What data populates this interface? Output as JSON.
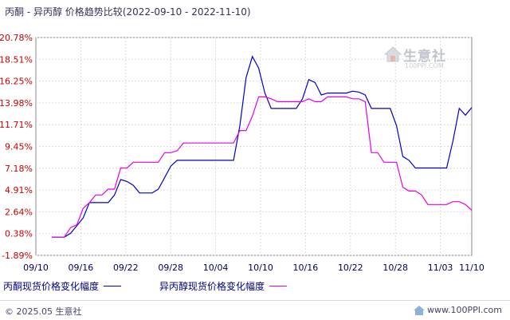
{
  "title": {
    "products": "丙酮 - 异丙醇",
    "subject": "价格趋势比较",
    "date_range": "(2022-09-10 - 2022-11-10)"
  },
  "watermark": {
    "brand": "生意社",
    "url": "100PPI.COM"
  },
  "footer": {
    "copyright": "© 2025.05 生意社",
    "site": "www.100PPI.com"
  },
  "colors": {
    "series_1": "#0000cc",
    "series_2": "#e600e6",
    "grid": "#dcdcdc",
    "y_tick": "#cc0000",
    "x_tick": "#000066"
  },
  "chart_data": {
    "type": "line",
    "title": "",
    "xlabel": "",
    "ylabel": "",
    "x_tick_labels": [
      "09/10",
      "09/16",
      "09/22",
      "09/28",
      "10/04",
      "10/10",
      "10/16",
      "10/22",
      "10/28",
      "11/03",
      "11/10"
    ],
    "y_tick_labels": [
      "20.78%",
      "18.51%",
      "16.25%",
      "13.98%",
      "11.71%",
      "9.45%",
      "7.18%",
      "4.91%",
      "2.64%",
      "0.38%",
      "-1.89%"
    ],
    "ylim": [
      -1.89,
      20.78
    ],
    "x_range_days": [
      0,
      61
    ],
    "grid": true,
    "legend_position": "bottom",
    "series": [
      {
        "name": "丙酮现货价格变化幅度",
        "color": "#0000cc",
        "points": [
          [
            0,
            0.0
          ],
          [
            1,
            0.0
          ],
          [
            2,
            0.0
          ],
          [
            3,
            0.4
          ],
          [
            4,
            1.2
          ],
          [
            5,
            2.0
          ],
          [
            6,
            3.6
          ],
          [
            7,
            3.6
          ],
          [
            8,
            3.6
          ],
          [
            9,
            3.6
          ],
          [
            10,
            4.4
          ],
          [
            11,
            6.0
          ],
          [
            12,
            5.8
          ],
          [
            13,
            5.4
          ],
          [
            14,
            4.6
          ],
          [
            15,
            4.6
          ],
          [
            16,
            4.6
          ],
          [
            17,
            5.0
          ],
          [
            18,
            6.2
          ],
          [
            19,
            7.4
          ],
          [
            20,
            8.0
          ],
          [
            21,
            8.0
          ],
          [
            22,
            8.0
          ],
          [
            23,
            8.0
          ],
          [
            24,
            8.0
          ],
          [
            25,
            8.0
          ],
          [
            26,
            8.0
          ],
          [
            27,
            8.0
          ],
          [
            28,
            8.0
          ],
          [
            29,
            8.0
          ],
          [
            30,
            11.6
          ],
          [
            31,
            16.6
          ],
          [
            32,
            18.8
          ],
          [
            33,
            17.6
          ],
          [
            34,
            15.0
          ],
          [
            35,
            13.4
          ],
          [
            36,
            13.4
          ],
          [
            37,
            13.4
          ],
          [
            38,
            13.4
          ],
          [
            39,
            13.4
          ],
          [
            40,
            14.4
          ],
          [
            41,
            16.4
          ],
          [
            42,
            16.1
          ],
          [
            43,
            14.8
          ],
          [
            44,
            15.0
          ],
          [
            45,
            15.0
          ],
          [
            46,
            15.0
          ],
          [
            47,
            15.0
          ],
          [
            48,
            15.2
          ],
          [
            49,
            15.1
          ],
          [
            50,
            14.8
          ],
          [
            51,
            13.4
          ],
          [
            52,
            13.4
          ],
          [
            53,
            13.4
          ],
          [
            54,
            13.4
          ],
          [
            55,
            11.6
          ],
          [
            56,
            8.4
          ],
          [
            57,
            8.0
          ],
          [
            58,
            7.2
          ],
          [
            59,
            7.2
          ],
          [
            60,
            7.2
          ],
          [
            61,
            7.2
          ],
          [
            62,
            7.2
          ],
          [
            63,
            7.2
          ],
          [
            64,
            10.0
          ],
          [
            65,
            13.4
          ],
          [
            66,
            12.7
          ],
          [
            67,
            13.5
          ]
        ]
      },
      {
        "name": "异丙醇现货价格变化幅度",
        "color": "#e600e6",
        "points": [
          [
            0,
            0.0
          ],
          [
            1,
            0.0
          ],
          [
            2,
            0.0
          ],
          [
            3,
            1.0
          ],
          [
            4,
            1.3
          ],
          [
            5,
            3.0
          ],
          [
            6,
            3.6
          ],
          [
            7,
            4.4
          ],
          [
            8,
            4.4
          ],
          [
            9,
            5.0
          ],
          [
            10,
            5.0
          ],
          [
            11,
            7.2
          ],
          [
            12,
            7.2
          ],
          [
            13,
            7.8
          ],
          [
            14,
            7.8
          ],
          [
            15,
            7.8
          ],
          [
            16,
            7.8
          ],
          [
            17,
            7.8
          ],
          [
            18,
            8.8
          ],
          [
            19,
            8.8
          ],
          [
            20,
            9.0
          ],
          [
            21,
            9.8
          ],
          [
            22,
            9.8
          ],
          [
            23,
            9.8
          ],
          [
            24,
            9.8
          ],
          [
            25,
            9.8
          ],
          [
            26,
            9.8
          ],
          [
            27,
            9.8
          ],
          [
            28,
            9.8
          ],
          [
            29,
            9.8
          ],
          [
            30,
            11.1
          ],
          [
            31,
            11.1
          ],
          [
            32,
            12.6
          ],
          [
            33,
            14.6
          ],
          [
            34,
            14.6
          ],
          [
            35,
            14.4
          ],
          [
            36,
            14.1
          ],
          [
            37,
            14.1
          ],
          [
            38,
            14.1
          ],
          [
            39,
            14.1
          ],
          [
            40,
            14.1
          ],
          [
            41,
            14.4
          ],
          [
            42,
            14.1
          ],
          [
            43,
            14.1
          ],
          [
            44,
            14.6
          ],
          [
            45,
            14.6
          ],
          [
            46,
            14.6
          ],
          [
            47,
            14.6
          ],
          [
            48,
            14.4
          ],
          [
            49,
            14.4
          ],
          [
            50,
            14.1
          ],
          [
            51,
            8.8
          ],
          [
            52,
            8.8
          ],
          [
            53,
            7.8
          ],
          [
            54,
            7.8
          ],
          [
            55,
            7.8
          ],
          [
            56,
            5.2
          ],
          [
            57,
            4.8
          ],
          [
            58,
            4.8
          ],
          [
            59,
            4.4
          ],
          [
            60,
            3.4
          ],
          [
            61,
            3.4
          ],
          [
            62,
            3.4
          ],
          [
            63,
            3.4
          ],
          [
            64,
            3.7
          ],
          [
            65,
            3.7
          ],
          [
            66,
            3.4
          ],
          [
            67,
            2.8
          ]
        ]
      }
    ]
  }
}
